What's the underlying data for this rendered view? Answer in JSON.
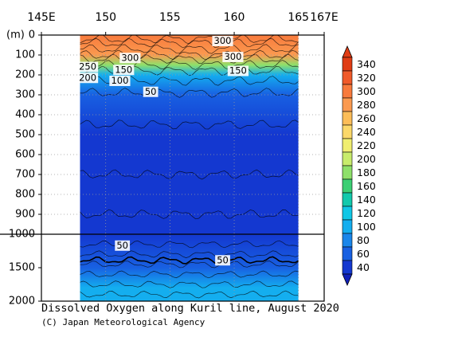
{
  "chart_data": {
    "type": "heatmap",
    "title": "Dissolved Oxygen along Kuril line, August 2020",
    "credit": "(C) Japan Meteorological Agency",
    "ylabel": "(m)",
    "x": {
      "ticks": [
        145,
        150,
        155,
        160,
        165,
        167
      ],
      "tick_labels": [
        "145E",
        "150",
        "155",
        "160",
        "165",
        "167E"
      ],
      "range": [
        145,
        167
      ]
    },
    "y": {
      "upper_ticks": [
        0,
        100,
        200,
        300,
        400,
        500,
        600,
        700,
        800,
        900,
        1000
      ],
      "upper_tick_labels": [
        "0",
        "100",
        "200",
        "300",
        "400",
        "500",
        "600",
        "700",
        "800",
        "900",
        "1000"
      ],
      "lower_ticks": [
        1500,
        2000
      ],
      "lower_tick_labels": [
        "1500",
        "2000"
      ],
      "range": [
        0,
        2000
      ],
      "axis_break_depth": 1000
    },
    "section_range": {
      "lon": [
        148.0,
        165.0
      ]
    },
    "contour_labels": [
      {
        "text": "300",
        "lon": 159.1,
        "depth": 30
      },
      {
        "text": "300",
        "lon": 151.9,
        "depth": 115
      },
      {
        "text": "300",
        "lon": 159.9,
        "depth": 110
      },
      {
        "text": "250",
        "lon": 148.6,
        "depth": 160
      },
      {
        "text": "150",
        "lon": 151.4,
        "depth": 175
      },
      {
        "text": "200",
        "lon": 148.6,
        "depth": 215
      },
      {
        "text": "150",
        "lon": 160.3,
        "depth": 180
      },
      {
        "text": "100",
        "lon": 151.1,
        "depth": 230
      },
      {
        "text": "50",
        "lon": 153.5,
        "depth": 285
      },
      {
        "text": "50",
        "lon": 151.3,
        "depth": 1170
      },
      {
        "text": "50",
        "lon": 159.1,
        "depth": 1390
      }
    ],
    "depth_layers": [
      {
        "depth": 0,
        "value": 300
      },
      {
        "depth": 100,
        "value": 290
      },
      {
        "depth": 150,
        "value": 180
      },
      {
        "depth": 200,
        "value": 95
      },
      {
        "depth": 300,
        "value": 55
      },
      {
        "depth": 500,
        "value": 38
      },
      {
        "depth": 1000,
        "value": 32
      },
      {
        "depth": 1500,
        "value": 60
      },
      {
        "depth": 1800,
        "value": 95
      },
      {
        "depth": 2000,
        "value": 110
      }
    ],
    "colorbar": {
      "labels": [
        "340",
        "320",
        "300",
        "280",
        "260",
        "240",
        "220",
        "200",
        "180",
        "160",
        "140",
        "120",
        "100",
        "80",
        "60",
        "40"
      ],
      "colors": [
        "#e03c14",
        "#f05a2a",
        "#f87a3c",
        "#fb9a50",
        "#fcbd58",
        "#fbd86a",
        "#f0ee70",
        "#c8ec6c",
        "#8ee06a",
        "#3ccf74",
        "#12c9ac",
        "#10c7e6",
        "#14aeef",
        "#1a86ea",
        "#1860e2",
        "#1438d0"
      ]
    },
    "grid": true
  }
}
